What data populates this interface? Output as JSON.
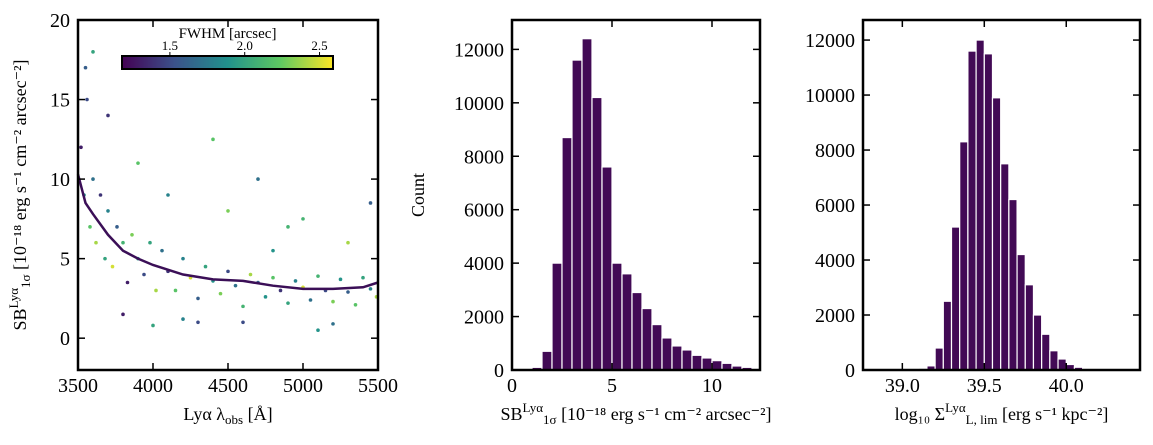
{
  "chart_data": [
    {
      "type": "scatter",
      "xlabel": {
        "base": "Lyα λ",
        "sub": "obs",
        "tail": " [Å]"
      },
      "ylabel": {
        "base": "SB",
        "sup": "Lyα",
        "sub": "1σ",
        "tail": " [10⁻¹⁸ erg s⁻¹ cm⁻² arcsec⁻²]"
      },
      "xlim": [
        3500,
        5500
      ],
      "ylim": [
        -2,
        20
      ],
      "xticks": [
        3500,
        4000,
        4500,
        5000,
        5500
      ],
      "yticks": [
        0,
        5,
        10,
        15,
        20
      ],
      "colormap": "viridis",
      "colorbar": {
        "label": "FWHM [arcsec]",
        "clim": [
          1.18,
          2.59
        ],
        "ticks": [
          1.5,
          {
            "value": 2,
            "label": "2.0"
          },
          2.5
        ]
      },
      "x": [
        3520,
        3540,
        3560,
        3580,
        3600,
        3620,
        3650,
        3680,
        3700,
        3730,
        3760,
        3800,
        3830,
        3860,
        3900,
        3940,
        3980,
        4020,
        4060,
        4100,
        4150,
        4200,
        4250,
        4300,
        4350,
        4400,
        4450,
        4500,
        4550,
        4600,
        4650,
        4700,
        4750,
        4800,
        4850,
        4900,
        4950,
        5000,
        5050,
        5100,
        5150,
        5200,
        5250,
        5300,
        5350,
        5400,
        5450,
        5490,
        3550,
        3600,
        3700,
        3900,
        4100,
        4300,
        4500,
        4700,
        4900,
        5100,
        5300,
        5450,
        3800,
        4000,
        4200,
        4400,
        4600,
        4800,
        5000,
        5200
      ],
      "y": [
        12,
        9,
        15,
        7,
        10,
        6,
        9,
        5,
        8,
        4.5,
        7,
        6,
        3.5,
        6.5,
        5,
        4,
        6,
        3,
        5.5,
        4.2,
        3,
        5,
        3.8,
        2.5,
        4.5,
        3.6,
        2.8,
        4.2,
        3.3,
        2,
        4,
        3.5,
        2.6,
        3.8,
        3,
        2.2,
        3.6,
        3.2,
        2.4,
        3.9,
        3,
        2.3,
        3.7,
        2.9,
        2.1,
        3.8,
        3.1,
        2.6,
        17,
        18,
        14,
        11,
        9,
        1,
        8,
        10,
        7,
        0.5,
        6,
        8.5,
        1.5,
        0.8,
        1.2,
        12.5,
        1,
        5.5,
        7.5,
        0.9
      ],
      "c": [
        1.3,
        1.9,
        1.5,
        2.2,
        1.7,
        2.4,
        1.4,
        2.0,
        1.8,
        2.5,
        1.6,
        2.1,
        1.3,
        2.3,
        1.9,
        1.5,
        2.0,
        2.4,
        1.7,
        1.4,
        2.2,
        1.8,
        2.5,
        1.6,
        2.0,
        1.9,
        2.3,
        1.5,
        1.7,
        2.1,
        2.4,
        1.6,
        1.9,
        2.2,
        1.4,
        2.0,
        1.8,
        2.5,
        1.7,
        2.1,
        1.5,
        2.3,
        1.9,
        1.6,
        2.2,
        2.0,
        1.8,
        2.4,
        1.6,
        2.0,
        1.4,
        2.2,
        1.8,
        1.5,
        2.3,
        1.7,
        2.1,
        1.9,
        2.4,
        1.6,
        1.3,
        2.0,
        1.8,
        2.2,
        1.5,
        1.9,
        2.1,
        1.7
      ],
      "median_line": {
        "color": "#3b0f57",
        "x": [
          3500,
          3550,
          3600,
          3700,
          3800,
          3900,
          4000,
          4200,
          4400,
          4600,
          4800,
          5000,
          5200,
          5400,
          5500
        ],
        "y": [
          10.3,
          8.5,
          7.8,
          6.5,
          5.5,
          5.0,
          4.6,
          4.0,
          3.7,
          3.6,
          3.3,
          3.1,
          3.1,
          3.2,
          3.5
        ]
      }
    },
    {
      "type": "histogram",
      "xlabel": {
        "base": "SB",
        "sup": "Lyα",
        "sub": "1σ",
        "tail": " [10⁻¹⁸ erg s⁻¹ cm⁻² arcsec⁻²]"
      },
      "ylabel": {
        "base": "Count"
      },
      "color": "#420a55",
      "xlim": [
        0,
        12.4
      ],
      "ylim": [
        0,
        13100
      ],
      "xticks": [
        0,
        5,
        10
      ],
      "yticks": [
        0,
        2000,
        4000,
        6000,
        8000,
        10000,
        12000
      ],
      "bins": [
        0,
        0.5,
        1,
        1.5,
        2,
        2.5,
        3,
        3.5,
        4,
        4.5,
        5,
        5.5,
        6,
        6.5,
        7,
        7.5,
        8,
        8.5,
        9,
        9.5,
        10,
        10.5,
        11,
        11.5,
        12
      ],
      "counts": [
        0,
        50,
        100,
        700,
        4000,
        8700,
        11600,
        12400,
        10200,
        7600,
        4000,
        3600,
        2900,
        2300,
        1700,
        1200,
        900,
        750,
        550,
        450,
        350,
        250,
        150,
        100
      ]
    },
    {
      "type": "histogram",
      "xlabel": {
        "base": "log₁₀ Σ",
        "sup": "Lyα",
        "sub": "L, lim",
        "tail": " [erg s⁻¹ kpc⁻²]"
      },
      "color": "#420a55",
      "xlim": [
        38.76,
        40.45
      ],
      "ylim": [
        0,
        12730
      ],
      "xticks": [
        {
          "value": 39,
          "label": "39.0"
        },
        39.5,
        {
          "value": 40,
          "label": "40.0"
        }
      ],
      "yticks": [
        0,
        2000,
        4000,
        6000,
        8000,
        10000,
        12000
      ],
      "bins": [
        39.05,
        39.1,
        39.15,
        39.2,
        39.25,
        39.3,
        39.35,
        39.4,
        39.45,
        39.5,
        39.55,
        39.6,
        39.65,
        39.7,
        39.75,
        39.8,
        39.85,
        39.9,
        39.95,
        40,
        40.05,
        40.1,
        40.15
      ],
      "counts": [
        30,
        60,
        150,
        800,
        2500,
        5200,
        8300,
        11600,
        12000,
        11500,
        9900,
        7500,
        6200,
        4200,
        3100,
        2000,
        1300,
        700,
        400,
        200,
        100,
        50
      ]
    }
  ]
}
